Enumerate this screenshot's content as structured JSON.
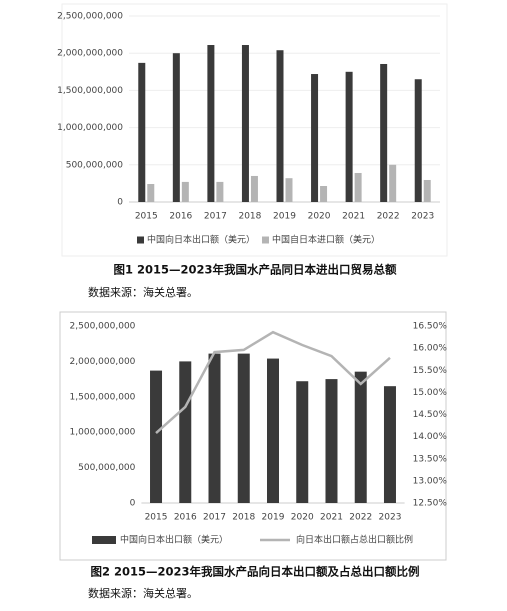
{
  "chart_data": [
    {
      "type": "bar",
      "title": "图1 2015—2023年我国水产品同日本进出口贸易总额",
      "source": "数据来源：海关总署。",
      "categories": [
        "2015",
        "2016",
        "2017",
        "2018",
        "2019",
        "2020",
        "2021",
        "2022",
        "2023"
      ],
      "series": [
        {
          "name": "中国向日本出口额（美元）",
          "color": "#3a3a3a",
          "values": [
            1870000000,
            2000000000,
            2110000000,
            2110000000,
            2040000000,
            1720000000,
            1750000000,
            1855000000,
            1650000000
          ]
        },
        {
          "name": "中国自日本进口额（美元）",
          "color": "#b4b4b4",
          "values": [
            242000000,
            270000000,
            270000000,
            350000000,
            320000000,
            215000000,
            390000000,
            500000000,
            296000000
          ]
        }
      ],
      "ylim": [
        0,
        2500000000
      ],
      "yticks": [
        0,
        {
          "value": 500000000,
          "label": "500,000,000"
        },
        {
          "value": 1000000000,
          "label": "1,000,000,000"
        },
        {
          "value": 1500000000,
          "label": "1,500,000,000"
        },
        {
          "value": 2000000000,
          "label": "2,000,000,000"
        },
        {
          "value": 2500000000,
          "label": "2,500,000,000"
        }
      ],
      "grid": true
    },
    {
      "type": "bar-line",
      "title": "图2 2015—2023年我国水产品向日本出口额及占总出口额比例",
      "source": "数据来源：海关总署。",
      "categories": [
        "2015",
        "2016",
        "2017",
        "2018",
        "2019",
        "2020",
        "2021",
        "2022",
        "2023"
      ],
      "series": [
        {
          "name": "中国向日本出口额（美元）",
          "color": "#3a3a3a",
          "type": "bar",
          "values": [
            1870000000,
            2000000000,
            2110000000,
            2110000000,
            2040000000,
            1720000000,
            1750000000,
            1855000000,
            1650000000
          ]
        },
        {
          "name": "向日本出口额占总出口额比例",
          "color": "#b4b4b4",
          "type": "line",
          "axis": "y2",
          "values": [
            14.08,
            14.67,
            15.91,
            15.96,
            16.36,
            16.07,
            15.82,
            15.19,
            15.78
          ]
        }
      ],
      "ylim": [
        0,
        2500000000
      ],
      "yticks": [
        0,
        {
          "value": 500000000,
          "label": "500,000,000"
        },
        {
          "value": 1000000000,
          "label": "1,000,000,000"
        },
        {
          "value": 1500000000,
          "label": "1,500,000,000"
        },
        {
          "value": 2000000000,
          "label": "2,000,000,000"
        },
        {
          "value": 2500000000,
          "label": "2,500,000,000"
        }
      ],
      "y2lim": [
        12.5,
        16.5
      ],
      "y2ticks": [
        {
          "value": 12.5,
          "label": "12.50%"
        },
        {
          "value": 13,
          "label": "13.00%"
        },
        {
          "value": 13.5,
          "label": "13.50%"
        },
        {
          "value": 14,
          "label": "14.00%"
        },
        {
          "value": 14.5,
          "label": "14.50%"
        },
        {
          "value": 15,
          "label": "15.00%"
        },
        {
          "value": 15.5,
          "label": "15.50%"
        },
        {
          "value": 16,
          "label": "16.00%"
        },
        {
          "value": 16.5,
          "label": "16.50%"
        }
      ],
      "grid": false
    }
  ]
}
